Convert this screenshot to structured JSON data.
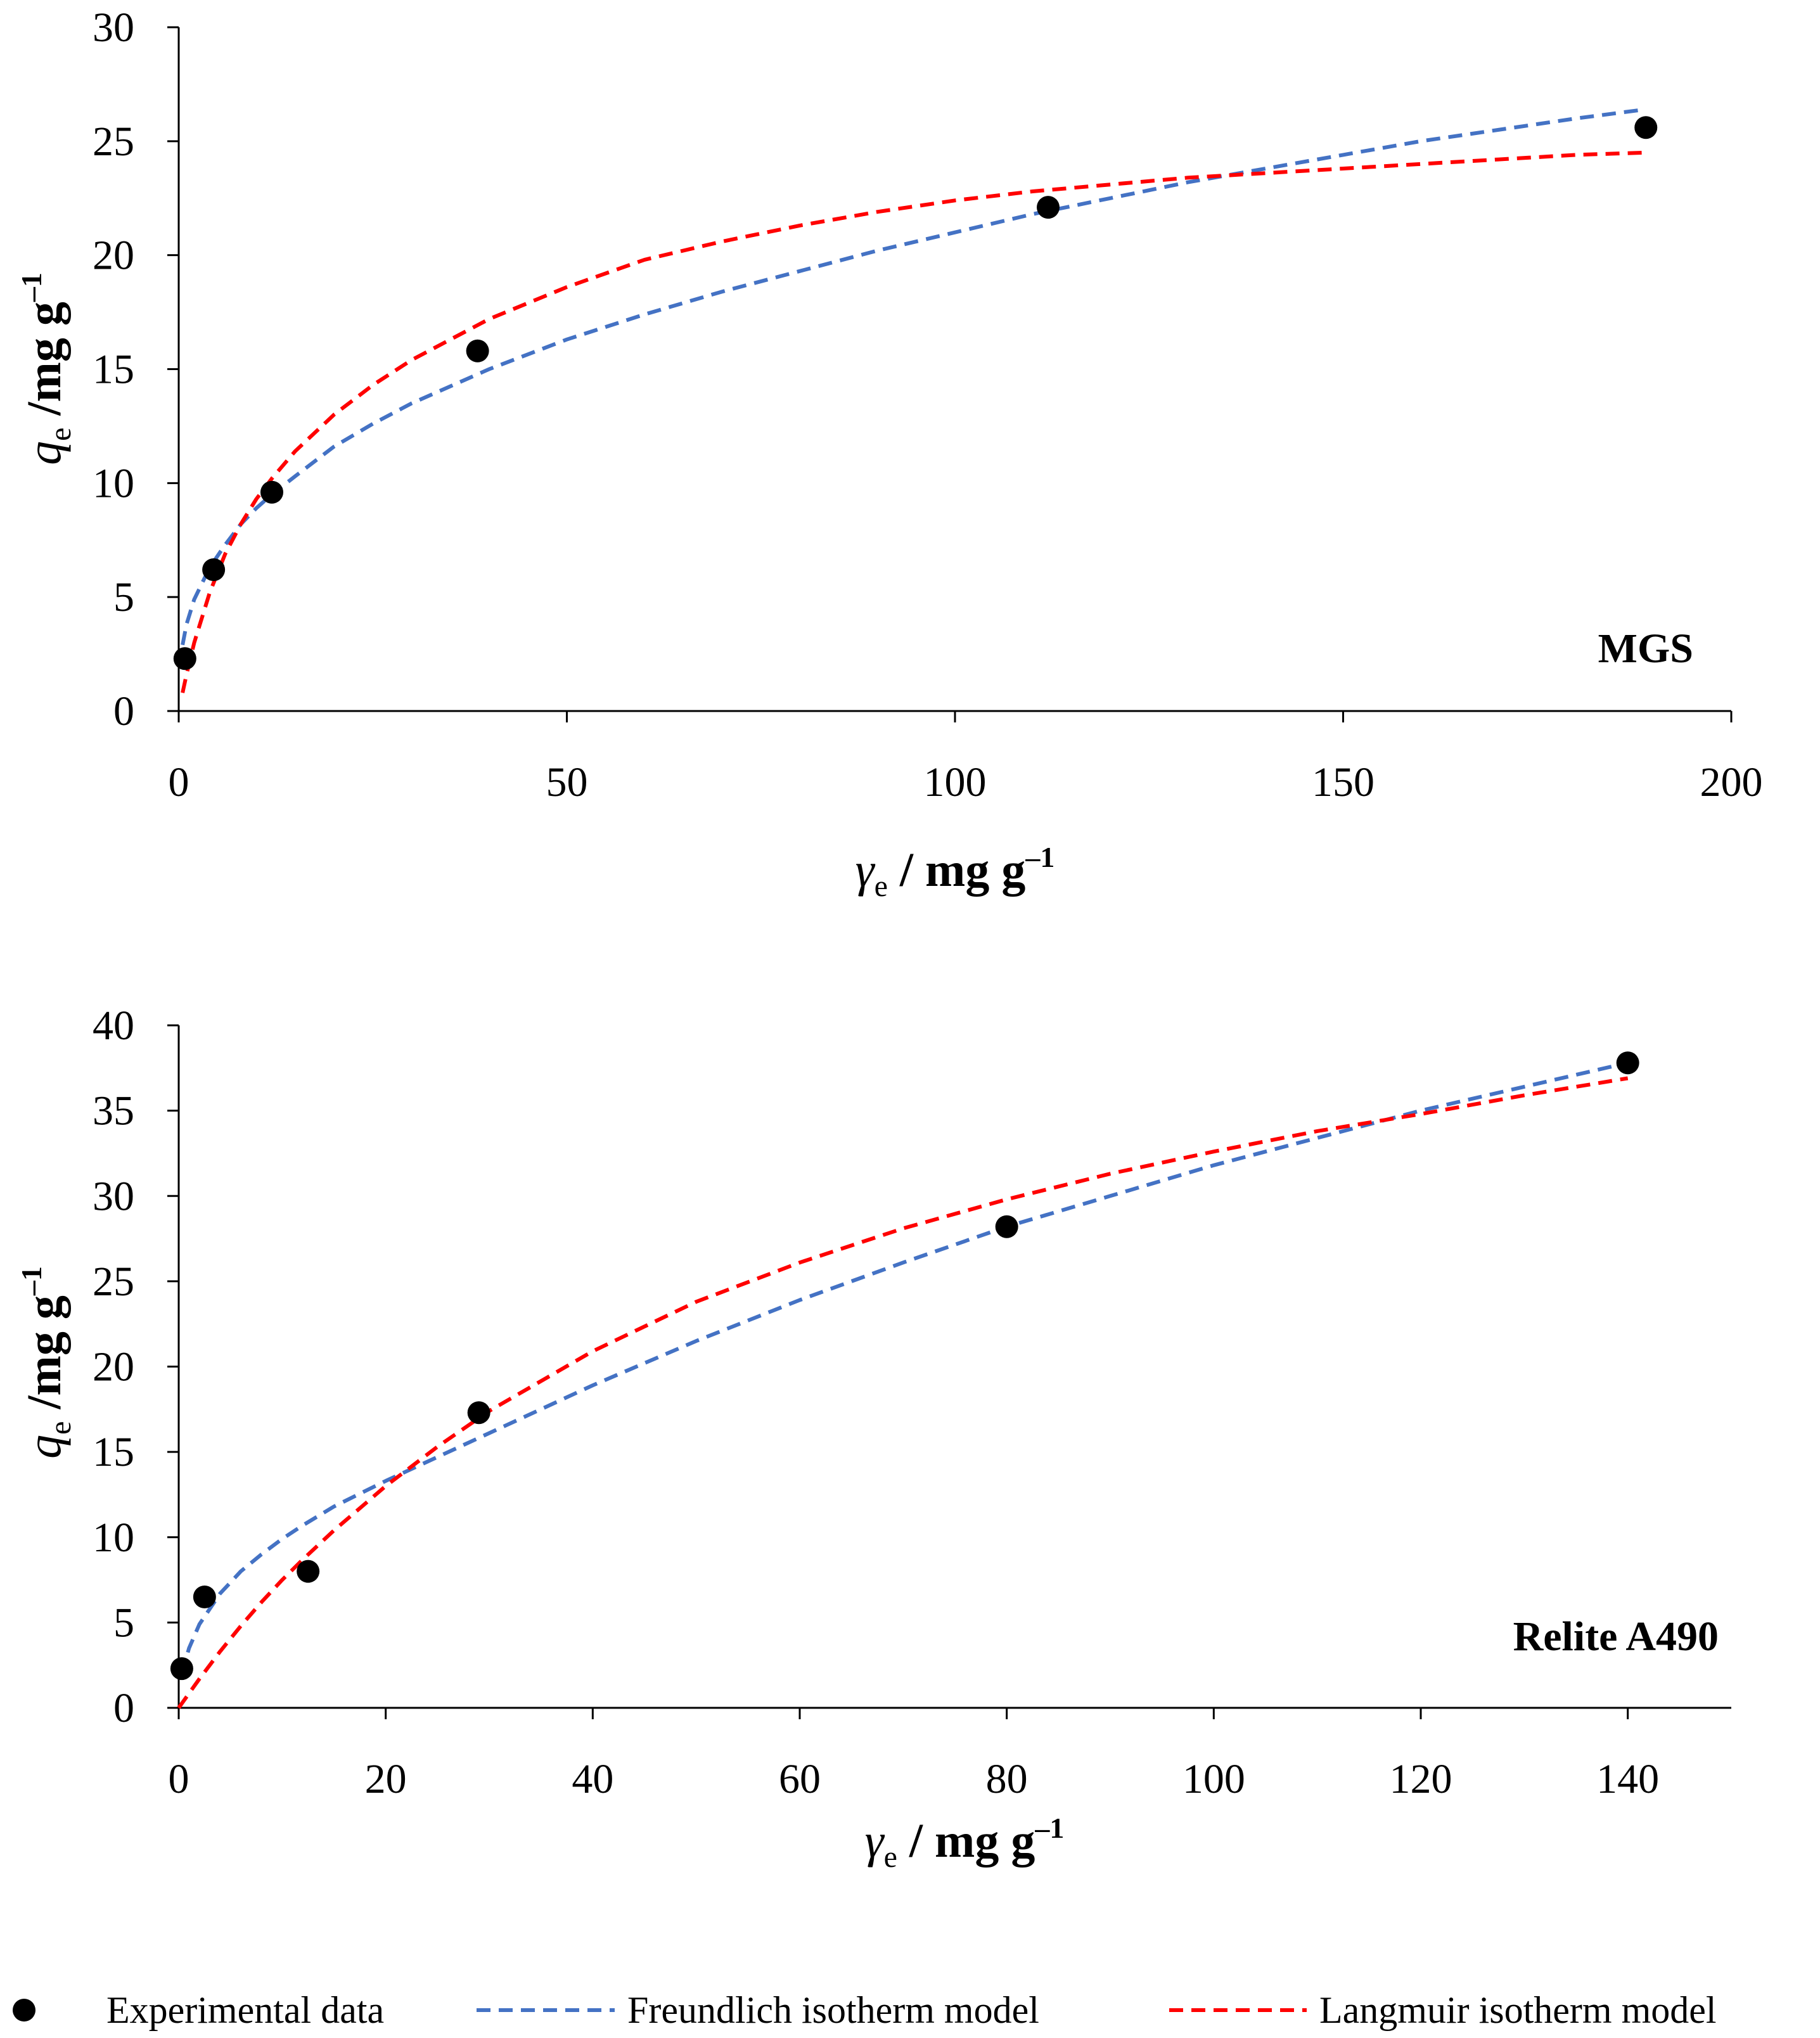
{
  "chart_data": [
    {
      "type": "scatter",
      "panel_label": "MGS",
      "xlabel": {
        "var": "γ",
        "sub": "e",
        "unit": " / mg g",
        "sup": "–1"
      },
      "ylabel": {
        "var": "q",
        "sub": "e",
        "unit": " /mg g",
        "sup": "–1"
      },
      "xlim": [
        0,
        200
      ],
      "ylim": [
        0,
        30
      ],
      "xticks": [
        0,
        50,
        100,
        150,
        200
      ],
      "yticks": [
        0,
        5,
        10,
        15,
        20,
        25,
        30
      ],
      "xtick_labels": [
        "0",
        "50",
        "100",
        "150",
        "200"
      ],
      "ytick_labels": [
        "0",
        "5",
        "10",
        "15",
        "20",
        "25",
        "30"
      ],
      "series": [
        {
          "name": "Experimental data",
          "kind": "points",
          "color": "#000000",
          "x": [
            0.8,
            4.5,
            12,
            38.5,
            112,
            189
          ],
          "y": [
            2.3,
            6.2,
            9.6,
            15.8,
            22.1,
            25.6
          ]
        },
        {
          "name": "Freundlich isotherm model",
          "kind": "dashed-line",
          "color": "#4472C4",
          "x": [
            0.5,
            1,
            2,
            4,
            6,
            8,
            10,
            12,
            15,
            20,
            25,
            30,
            40,
            50,
            60,
            70,
            80,
            90,
            100,
            110,
            120,
            130,
            140,
            150,
            160,
            170,
            180,
            189
          ],
          "y": [
            2.9,
            3.8,
            4.9,
            6.3,
            7.3,
            8.2,
            8.9,
            9.5,
            10.3,
            11.6,
            12.6,
            13.5,
            15.0,
            16.3,
            17.4,
            18.4,
            19.3,
            20.2,
            21.0,
            21.8,
            22.5,
            23.2,
            23.8,
            24.4,
            25.0,
            25.5,
            26.0,
            26.4
          ]
        },
        {
          "name": "Langmuir isotherm model",
          "kind": "dashed-line",
          "color": "#FF0000",
          "x": [
            0.5,
            1,
            2,
            4,
            6,
            8,
            10,
            12,
            15,
            20,
            25,
            30,
            40,
            50,
            60,
            70,
            80,
            90,
            100,
            110,
            120,
            130,
            140,
            150,
            160,
            170,
            180,
            189
          ],
          "y": [
            0.8,
            1.6,
            3.0,
            5.2,
            6.9,
            8.2,
            9.3,
            10.2,
            11.4,
            13.0,
            14.3,
            15.4,
            17.2,
            18.6,
            19.8,
            20.6,
            21.3,
            21.9,
            22.4,
            22.8,
            23.1,
            23.4,
            23.6,
            23.8,
            24.0,
            24.2,
            24.4,
            24.5
          ]
        }
      ]
    },
    {
      "type": "scatter",
      "panel_label": "Relite A490",
      "xlabel": {
        "var": "γ",
        "sub": "e",
        "unit": " / mg g",
        "sup": "–1"
      },
      "ylabel": {
        "var": "q",
        "sub": "e",
        "unit": " /mg g",
        "sup": "–1"
      },
      "xlim": [
        0,
        150
      ],
      "ylim": [
        0,
        40
      ],
      "xticks": [
        0,
        20,
        40,
        60,
        80,
        100,
        120,
        140
      ],
      "yticks": [
        0,
        5,
        10,
        15,
        20,
        25,
        30,
        35,
        40
      ],
      "xtick_labels": [
        "0",
        "20",
        "40",
        "60",
        "80",
        "100",
        "120",
        "140"
      ],
      "ytick_labels": [
        "0",
        "5",
        "10",
        "15",
        "20",
        "25",
        "30",
        "35",
        "40"
      ],
      "series": [
        {
          "name": "Experimental data",
          "kind": "points",
          "color": "#000000",
          "x": [
            0.3,
            2.5,
            12.5,
            29,
            80,
            140
          ],
          "y": [
            2.3,
            6.5,
            8.0,
            17.3,
            28.2,
            37.8
          ]
        },
        {
          "name": "Freundlich isotherm model",
          "kind": "dashed-line",
          "color": "#4472C4",
          "x": [
            0.3,
            1,
            2,
            4,
            6,
            8,
            10,
            12,
            15,
            20,
            25,
            30,
            40,
            50,
            60,
            70,
            80,
            90,
            100,
            110,
            120,
            130,
            140
          ],
          "y": [
            2.0,
            3.5,
            4.9,
            6.7,
            8.0,
            9.0,
            9.9,
            10.7,
            11.8,
            13.3,
            14.7,
            16.1,
            18.9,
            21.5,
            23.9,
            26.1,
            28.2,
            30.0,
            31.8,
            33.4,
            35.0,
            36.4,
            37.8
          ]
        },
        {
          "name": "Langmuir isotherm model",
          "kind": "dashed-line",
          "color": "#FF0000",
          "x": [
            0,
            2,
            4,
            6,
            8,
            10,
            12,
            15,
            20,
            25,
            30,
            40,
            50,
            60,
            70,
            80,
            90,
            100,
            110,
            120,
            130,
            140
          ],
          "y": [
            0.0,
            1.7,
            3.3,
            4.8,
            6.2,
            7.5,
            8.7,
            10.4,
            13.0,
            15.3,
            17.4,
            20.9,
            23.8,
            26.1,
            28.1,
            29.8,
            31.3,
            32.6,
            33.8,
            34.8,
            35.9,
            36.9
          ]
        }
      ]
    }
  ],
  "legend": [
    {
      "label": "Experimental data",
      "kind": "marker",
      "color": "#000000"
    },
    {
      "label": "Freundlich isotherm model",
      "kind": "dashed-line",
      "color": "#4472C4"
    },
    {
      "label": "Langmuir isotherm model",
      "kind": "dashed-line",
      "color": "#FF0000"
    }
  ]
}
